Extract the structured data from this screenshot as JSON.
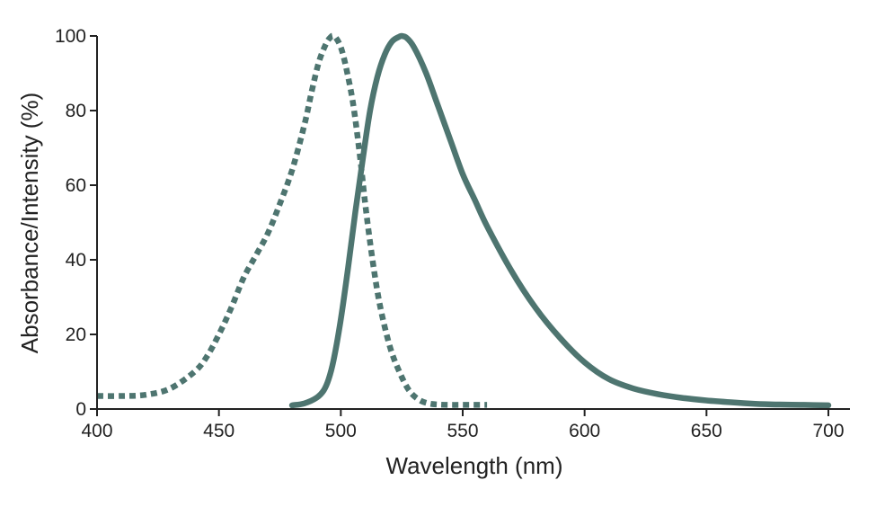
{
  "chart_data": {
    "type": "line",
    "xlabel": "Wavelength (nm)",
    "ylabel": "Absorbance/Intensity (%)",
    "xlim": [
      400,
      700
    ],
    "ylim": [
      0,
      100
    ],
    "xticks": [
      400,
      450,
      500,
      550,
      600,
      650,
      700
    ],
    "yticks": [
      0,
      20,
      40,
      60,
      80,
      100
    ],
    "grid": false,
    "color": "#4e7570",
    "series": [
      {
        "style": "dotted",
        "x": [
          400,
          410,
          420,
          430,
          440,
          445,
          450,
          455,
          460,
          465,
          470,
          475,
          480,
          485,
          488,
          491,
          494,
          496,
          497,
          498,
          500,
          502,
          505,
          508,
          510,
          513,
          516,
          520,
          524,
          528,
          532,
          536,
          540,
          545,
          550,
          555,
          560
        ],
        "y": [
          3.5,
          3.5,
          3.8,
          5.5,
          10,
          14,
          20,
          27,
          35,
          41,
          47,
          55,
          64,
          76,
          85,
          93,
          98,
          99.8,
          100,
          99.5,
          97,
          92,
          82,
          67,
          55,
          40,
          28,
          17,
          10,
          5,
          2.5,
          1.5,
          1.2,
          1.1,
          1.1,
          1.1,
          1.1
        ]
      },
      {
        "style": "solid",
        "x": [
          480,
          485,
          490,
          493,
          495,
          497,
          500,
          503,
          506,
          509,
          512,
          515,
          518,
          521,
          524,
          525,
          527,
          530,
          535,
          540,
          545,
          550,
          555,
          560,
          570,
          580,
          590,
          600,
          610,
          620,
          630,
          640,
          650,
          660,
          670,
          680,
          690,
          700
        ],
        "y": [
          1,
          1.5,
          3,
          5,
          8,
          13,
          24,
          38,
          53,
          67,
          80,
          89,
          95,
          98.5,
          99.8,
          100,
          99.5,
          97,
          90,
          81,
          72,
          63,
          56,
          49,
          37,
          27,
          19,
          12.5,
          8,
          5.5,
          4,
          3,
          2.3,
          1.8,
          1.4,
          1.2,
          1.1,
          1
        ]
      }
    ]
  }
}
